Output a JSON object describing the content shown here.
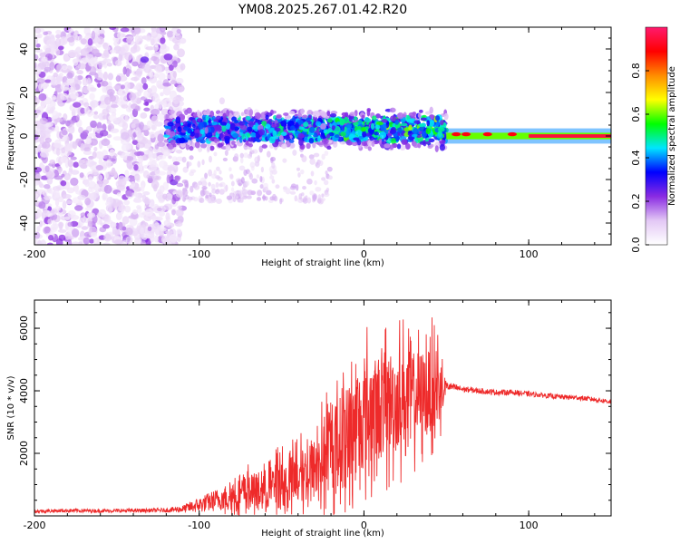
{
  "title": "YM08.2025.267.01.42.R20",
  "chart_data": [
    {
      "type": "heatmap",
      "name": "spectrogram",
      "xlabel": "Height of straight line (km)",
      "ylabel": "Frequency (Hz)",
      "xlim": [
        -200,
        150
      ],
      "ylim": [
        -50,
        50
      ],
      "x_ticks": [
        "-200",
        "-100",
        "0",
        "100"
      ],
      "x_tick_values": [
        -200,
        -100,
        0,
        100
      ],
      "y_ticks": [
        "-40",
        "-20",
        "0",
        "20",
        "40"
      ],
      "y_tick_values": [
        -40,
        -20,
        0,
        20,
        40
      ],
      "colorbar": {
        "label": "Normalized spectral amplitude",
        "range": [
          0,
          1
        ],
        "ticks": [
          "0.0",
          "0.2",
          "0.4",
          "0.6",
          "0.8"
        ],
        "tick_values": [
          0.0,
          0.2,
          0.4,
          0.6,
          0.8
        ],
        "colors": [
          "#ffffff",
          "#e3c8f5",
          "#8a2be2",
          "#0000ff",
          "#00e5ff",
          "#00ff00",
          "#ffff00",
          "#ff8c00",
          "#ff0000",
          "#ff1a6e"
        ]
      },
      "features": [
        {
          "region": "noise",
          "x_range": [
            -200,
            -110
          ],
          "freq_range": [
            -50,
            50
          ],
          "level": 0.1
        },
        {
          "region": "band",
          "x_range": [
            -120,
            50
          ],
          "freq_center": 3,
          "freq_halfwidth": 8,
          "level": 0.5
        },
        {
          "region": "tone",
          "x_range": [
            50,
            150
          ],
          "freq_center": 0,
          "freq_halfwidth": 2,
          "level": 0.95
        }
      ]
    },
    {
      "type": "line",
      "name": "snr",
      "xlabel": "Height of straight line (km)",
      "ylabel": "SNR (10 * v/v)",
      "xlim": [
        -200,
        150
      ],
      "ylim": [
        0,
        6900
      ],
      "x_ticks": [
        "-200",
        "-100",
        "0",
        "100"
      ],
      "x_tick_values": [
        -200,
        -100,
        0,
        100
      ],
      "y_ticks": [
        "2000",
        "4000",
        "6000"
      ],
      "y_tick_values": [
        2000,
        4000,
        6000
      ],
      "color": "#ee2a2a",
      "x": [
        -200,
        -180,
        -160,
        -140,
        -120,
        -110,
        -100,
        -90,
        -80,
        -70,
        -60,
        -50,
        -40,
        -30,
        -20,
        -15,
        -10,
        -5,
        0,
        5,
        10,
        15,
        20,
        25,
        30,
        35,
        40,
        45,
        50,
        55,
        60,
        70,
        80,
        90,
        100,
        110,
        120,
        130,
        140,
        150
      ],
      "y": [
        150,
        170,
        160,
        170,
        180,
        220,
        350,
        500,
        650,
        750,
        850,
        1000,
        1200,
        1500,
        2100,
        2400,
        2700,
        2900,
        3200,
        3300,
        3500,
        3600,
        3750,
        3800,
        3850,
        3900,
        4000,
        4050,
        4150,
        4100,
        4050,
        4000,
        3950,
        3950,
        3900,
        3850,
        3800,
        3780,
        3720,
        3650
      ],
      "amplitude": [
        60,
        60,
        60,
        60,
        70,
        120,
        250,
        350,
        450,
        550,
        650,
        750,
        850,
        1000,
        1300,
        1400,
        1500,
        1600,
        1700,
        1700,
        1700,
        1700,
        1600,
        1500,
        1400,
        1400,
        1300,
        1300,
        150,
        120,
        100,
        90,
        90,
        90,
        80,
        80,
        80,
        80,
        80,
        80
      ]
    }
  ]
}
